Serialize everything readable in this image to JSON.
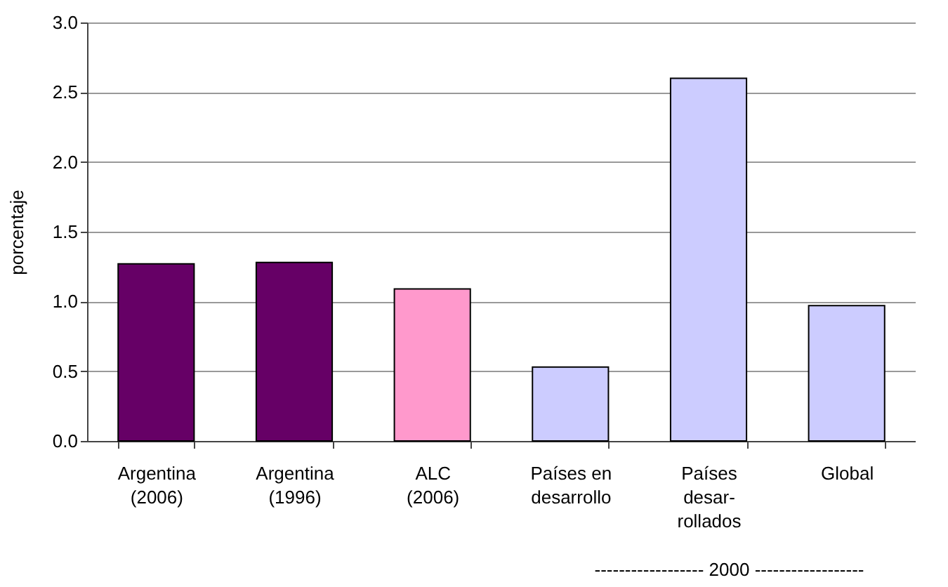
{
  "chart_data": {
    "type": "bar",
    "ylabel": "porcentaje",
    "categories": [
      "Argentina\n(2006)",
      "Argentina\n(1996)",
      "ALC\n(2006)",
      "Países en\ndesarrollo",
      "Países\ndesar-\nrollados",
      "Global"
    ],
    "values": [
      1.27,
      1.28,
      1.09,
      0.53,
      2.6,
      0.97
    ],
    "colors": [
      "#660066",
      "#660066",
      "#ff99cc",
      "#ccccff",
      "#ccccff",
      "#ccccff"
    ],
    "ylim": [
      0,
      3.0
    ],
    "yticks": [
      {
        "value": 0,
        "label": "0.0"
      },
      {
        "value": 0.5,
        "label": "0.5"
      },
      {
        "value": 1,
        "label": "1.0"
      },
      {
        "value": 1.5,
        "label": "1.5"
      },
      {
        "value": 2,
        "label": "2.0"
      },
      {
        "value": 2.5,
        "label": "2.5"
      },
      {
        "value": 3,
        "label": "3.0"
      }
    ],
    "grid": "y",
    "annotations": [
      "------------------ 2000 ------------------"
    ]
  }
}
